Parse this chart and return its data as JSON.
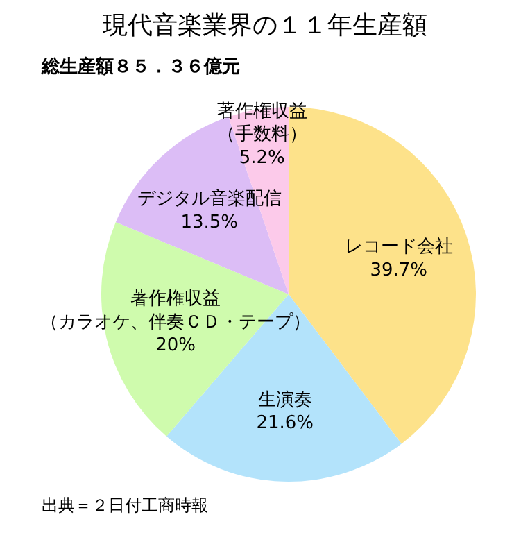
{
  "chart_data": {
    "type": "pie",
    "title": "現代音楽業界の１１年生産額",
    "subtitle": "総生産額８５．３６億元",
    "categories": [
      "レコード会社",
      "生演奏",
      "著作権収益（カラオケ、伴奏ＣＤ・テープ）",
      "デジタル音楽配信",
      "著作権収益（手数料）"
    ],
    "values": [
      39.7,
      21.6,
      20,
      13.5,
      5.2
    ],
    "value_labels": [
      "39.7%",
      "21.6%",
      "20%",
      "13.5%",
      "5.2%"
    ],
    "colors": [
      "#fde28a",
      "#b3e3fb",
      "#cffbad",
      "#dcbdf6",
      "#fccaea"
    ],
    "annotations": [
      "出典＝２日付工商時報"
    ]
  }
}
